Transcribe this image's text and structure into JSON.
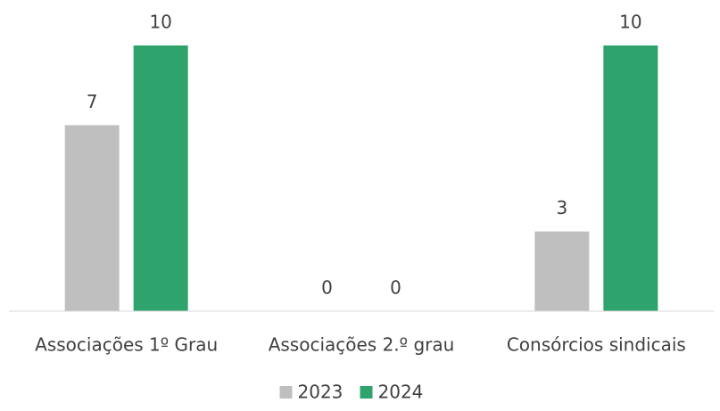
{
  "chart_data": {
    "type": "bar",
    "categories": [
      "Associações 1º Grau",
      "Associações 2.º grau",
      "Consórcios sindicais"
    ],
    "series": [
      {
        "name": "2023",
        "color": "#bfbfbf",
        "values": [
          7,
          0,
          3
        ]
      },
      {
        "name": "2024",
        "color": "#2ea36b",
        "values": [
          10,
          0,
          10
        ]
      }
    ],
    "legend": "bottom"
  }
}
